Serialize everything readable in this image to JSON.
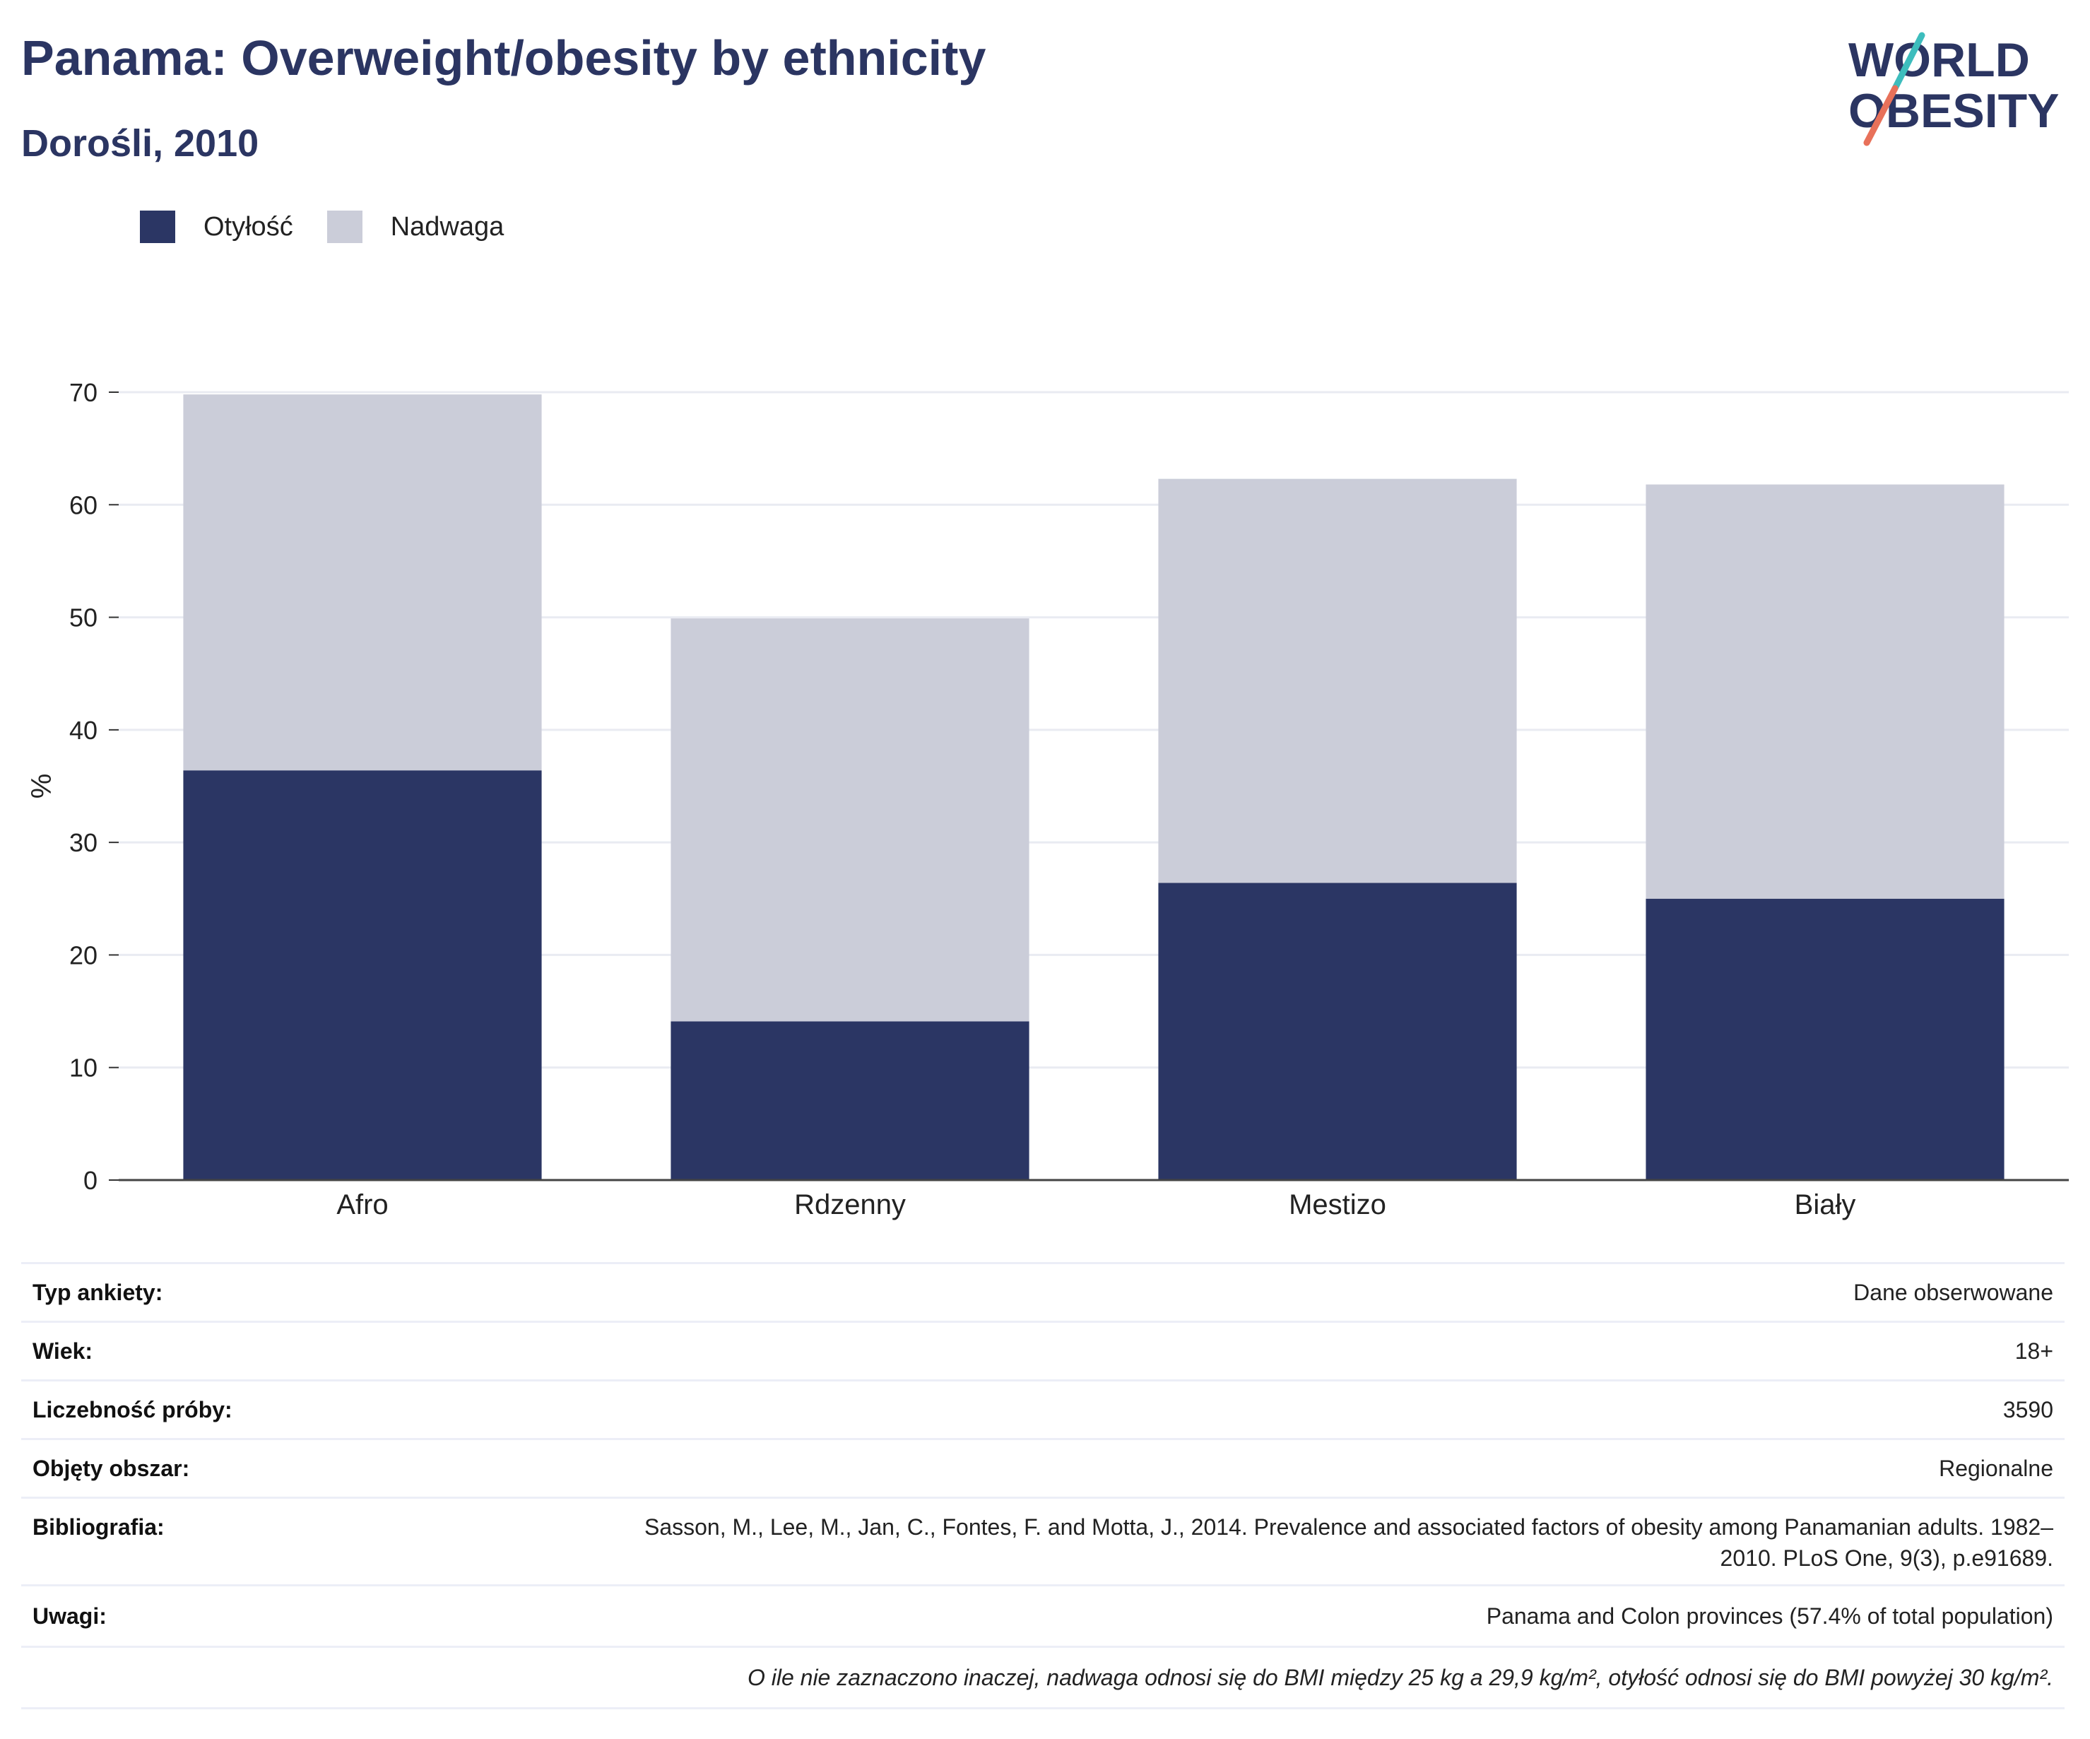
{
  "title": "Panama: Overweight/obesity by ethnicity",
  "subtitle": "Dorośli, 2010",
  "logo": {
    "line1": "WORLD",
    "line2": "OBESITY"
  },
  "colors": {
    "obesity": "#2b3664",
    "overweight": "#cbcdd9",
    "title": "#2b3562",
    "logo_teal": "#3dbdbd",
    "logo_coral": "#e8715a"
  },
  "legend": [
    {
      "label": "Otyłość",
      "color": "#2b3664"
    },
    {
      "label": "Nadwaga",
      "color": "#cbcdd9"
    }
  ],
  "chart_data": {
    "type": "bar",
    "stacked": true,
    "categories": [
      "Afro",
      "Rdzenny",
      "Mestizo",
      "Biały"
    ],
    "series": [
      {
        "name": "Otyłość",
        "values": [
          36.4,
          14.1,
          26.4,
          25.0
        ]
      },
      {
        "name": "Nadwaga",
        "values": [
          33.4,
          35.8,
          35.9,
          36.8
        ]
      }
    ],
    "totals": [
      69.8,
      49.9,
      62.3,
      61.8
    ],
    "ylabel": "%",
    "ylim": [
      0,
      70
    ],
    "yticks": [
      0,
      10,
      20,
      30,
      40,
      50,
      60,
      70
    ],
    "grid": true
  },
  "meta": [
    {
      "key": "Typ ankiety:",
      "value": "Dane obserwowane"
    },
    {
      "key": "Wiek:",
      "value": "18+"
    },
    {
      "key": "Liczebność próby:",
      "value": "3590"
    },
    {
      "key": "Objęty obszar:",
      "value": "Regionalne"
    },
    {
      "key": "Bibliografia:",
      "value": "Sasson, M., Lee, M., Jan, C., Fontes, F. and Motta, J., 2014. Prevalence and associated factors of obesity among Panamanian adults. 1982–2010. PLoS One, 9(3), p.e91689."
    },
    {
      "key": "Uwagi:",
      "value": "Panama and Colon provinces (57.4% of total population)"
    }
  ],
  "footnote": "O ile nie zaznaczono inaczej, nadwaga odnosi się do BMI między 25 kg a 29,9 kg/m², otyłość odnosi się do BMI powyżej 30 kg/m²."
}
